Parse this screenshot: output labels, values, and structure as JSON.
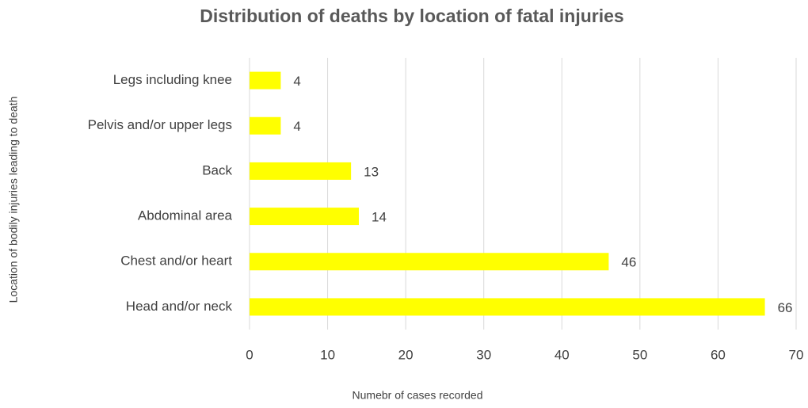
{
  "chart_data": {
    "type": "hbar",
    "title": "Distribution of deaths by location of fatal injuries",
    "x_label": "Numebr of cases recorded",
    "y_label": "Location of bodily injuries leading to death",
    "categories": [
      "Legs including knee",
      "Pelvis and/or upper legs",
      "Back",
      "Abdominal area",
      "Chest and/or heart",
      "Head and/or neck"
    ],
    "values": [
      4,
      4,
      13,
      14,
      46,
      66
    ],
    "color": "#ffff00",
    "xlim": [
      0,
      70
    ],
    "xticks": [
      0,
      10,
      20,
      30,
      40,
      50,
      60,
      70
    ],
    "grid": true
  }
}
